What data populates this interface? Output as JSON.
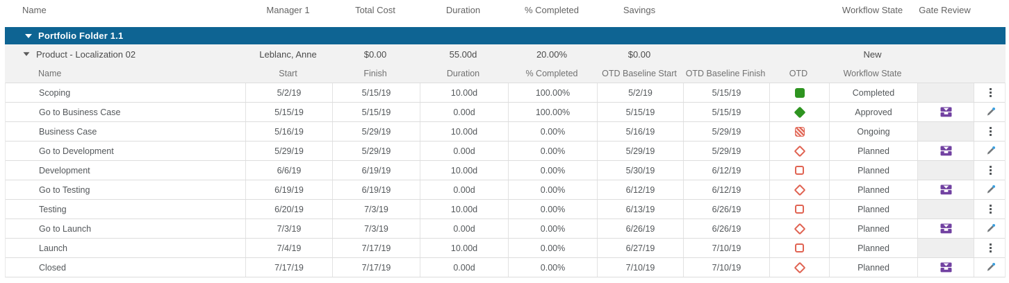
{
  "top_header": {
    "name": "Name",
    "manager": "Manager 1",
    "total_cost": "Total Cost",
    "duration": "Duration",
    "pct_completed": "% Completed",
    "savings": "Savings",
    "workflow_state": "Workflow State",
    "gate_review": "Gate Review"
  },
  "portfolio": {
    "label": "Portfolio Folder 1.1",
    "expanded": true
  },
  "product": {
    "name": "Product - Localization 02",
    "expanded": true,
    "manager": "Leblanc, Anne",
    "total_cost": "$0.00",
    "duration": "55.00d",
    "pct_completed": "20.00%",
    "savings": "$0.00",
    "workflow_state": "New"
  },
  "sub_header": {
    "name": "Name",
    "start": "Start",
    "finish": "Finish",
    "duration": "Duration",
    "pct_completed": "% Completed",
    "otd_baseline_start": "OTD Baseline Start",
    "otd_baseline_finish": "OTD Baseline Finish",
    "otd": "OTD",
    "workflow_state": "Workflow State"
  },
  "tasks": [
    {
      "name": "Scoping",
      "start": "5/2/19",
      "finish": "5/15/19",
      "duration": "10.00d",
      "pct_completed": "100.00%",
      "otd_baseline_start": "5/2/19",
      "otd_baseline_finish": "5/15/19",
      "otd_indicator": "green-filled-square",
      "workflow_state": "Completed",
      "gate_review": false,
      "action": "more-menu"
    },
    {
      "name": "Go to Business Case",
      "start": "5/15/19",
      "finish": "5/15/19",
      "duration": "0.00d",
      "pct_completed": "100.00%",
      "otd_baseline_start": "5/15/19",
      "otd_baseline_finish": "5/15/19",
      "otd_indicator": "green-filled-diamond",
      "workflow_state": "Approved",
      "gate_review": true,
      "action": "edit-pencil"
    },
    {
      "name": "Business Case",
      "start": "5/16/19",
      "finish": "5/29/19",
      "duration": "10.00d",
      "pct_completed": "0.00%",
      "otd_baseline_start": "5/16/19",
      "otd_baseline_finish": "5/29/19",
      "otd_indicator": "red-hatched-square",
      "workflow_state": "Ongoing",
      "gate_review": false,
      "action": "more-menu"
    },
    {
      "name": "Go to Development",
      "start": "5/29/19",
      "finish": "5/29/19",
      "duration": "0.00d",
      "pct_completed": "0.00%",
      "otd_baseline_start": "5/29/19",
      "otd_baseline_finish": "5/29/19",
      "otd_indicator": "red-outline-diamond",
      "workflow_state": "Planned",
      "gate_review": true,
      "action": "edit-pencil"
    },
    {
      "name": "Development",
      "start": "6/6/19",
      "finish": "6/19/19",
      "duration": "10.00d",
      "pct_completed": "0.00%",
      "otd_baseline_start": "5/30/19",
      "otd_baseline_finish": "6/12/19",
      "otd_indicator": "red-outline-square",
      "workflow_state": "Planned",
      "gate_review": false,
      "action": "more-menu"
    },
    {
      "name": "Go to Testing",
      "start": "6/19/19",
      "finish": "6/19/19",
      "duration": "0.00d",
      "pct_completed": "0.00%",
      "otd_baseline_start": "6/12/19",
      "otd_baseline_finish": "6/12/19",
      "otd_indicator": "red-outline-diamond",
      "workflow_state": "Planned",
      "gate_review": true,
      "action": "edit-pencil"
    },
    {
      "name": "Testing",
      "start": "6/20/19",
      "finish": "7/3/19",
      "duration": "10.00d",
      "pct_completed": "0.00%",
      "otd_baseline_start": "6/13/19",
      "otd_baseline_finish": "6/26/19",
      "otd_indicator": "red-outline-square",
      "workflow_state": "Planned",
      "gate_review": false,
      "action": "more-menu"
    },
    {
      "name": "Go to Launch",
      "start": "7/3/19",
      "finish": "7/3/19",
      "duration": "0.00d",
      "pct_completed": "0.00%",
      "otd_baseline_start": "6/26/19",
      "otd_baseline_finish": "6/26/19",
      "otd_indicator": "red-outline-diamond",
      "workflow_state": "Planned",
      "gate_review": true,
      "action": "edit-pencil"
    },
    {
      "name": "Launch",
      "start": "7/4/19",
      "finish": "7/17/19",
      "duration": "10.00d",
      "pct_completed": "0.00%",
      "otd_baseline_start": "6/27/19",
      "otd_baseline_finish": "7/10/19",
      "otd_indicator": "red-outline-square",
      "workflow_state": "Planned",
      "gate_review": false,
      "action": "more-menu"
    },
    {
      "name": "Closed",
      "start": "7/17/19",
      "finish": "7/17/19",
      "duration": "0.00d",
      "pct_completed": "0.00%",
      "otd_baseline_start": "7/10/19",
      "otd_baseline_finish": "7/10/19",
      "otd_indicator": "red-outline-diamond",
      "workflow_state": "Planned",
      "gate_review": true,
      "action": "edit-pencil"
    }
  ],
  "icons": {
    "expand_triangle": "chevron-down-triangle",
    "gate_review": "purple-stage-gate-icon",
    "edit": "pencil-with-blue-dot",
    "row_menu": "vertical-ellipsis"
  },
  "colors": {
    "portfolio_bar_blue": "#0e6493",
    "otd_on_track_green": "#2e9420",
    "otd_late_red": "#e06352",
    "gate_purple": "#7141a1",
    "summary_row_gray": "#f2f2f2"
  }
}
